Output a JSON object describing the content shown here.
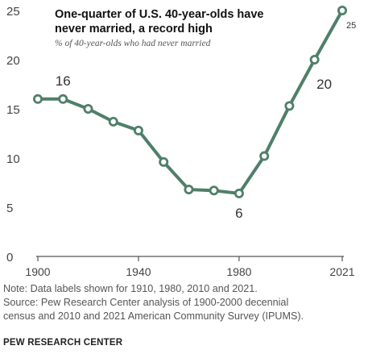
{
  "chart_data": {
    "type": "line",
    "title": "One-quarter of U.S. 40-year-olds have never married, a record high",
    "title_lines": [
      "One-quarter of U.S. 40-year-olds have",
      "never married, a record high"
    ],
    "subtitle": "% of 40-year-olds who had never married",
    "x": [
      1900,
      1910,
      1920,
      1930,
      1940,
      1950,
      1960,
      1970,
      1980,
      1990,
      2000,
      2010,
      2021
    ],
    "series": [
      {
        "values": [
          16.0,
          16.0,
          15.0,
          13.7,
          12.8,
          9.6,
          6.8,
          6.7,
          6.4,
          10.2,
          15.3,
          20.0,
          25.0
        ]
      }
    ],
    "x_ticks": [
      "1900",
      "1940",
      "1980",
      "2021"
    ],
    "x_tick_values": [
      1900,
      1940,
      1980,
      2021
    ],
    "y_ticks": [
      "0",
      "5",
      "10",
      "15",
      "20",
      "25"
    ],
    "y_tick_values": [
      0,
      5,
      10,
      15,
      20,
      25
    ],
    "xlim": [
      1900,
      2021
    ],
    "ylim": [
      0,
      25
    ],
    "data_labels": [
      {
        "x": 1910,
        "text": "16",
        "placement": "above"
      },
      {
        "x": 1980,
        "text": "6",
        "placement": "below"
      },
      {
        "x": 2010,
        "text": "20",
        "placement": "right-below"
      },
      {
        "x": 2021,
        "text": "25",
        "placement": "right"
      }
    ],
    "grid": false,
    "line_color": "#4f7f6a",
    "axis_color": "#555555"
  },
  "notes": {
    "line1": "Note: Data labels shown for 1910, 1980, 2010 and 2021.",
    "line2": "Source: Pew Research Center analysis of 1900-2000 decennial",
    "line3": "census and 2010 and 2021 American Community Survey (IPUMS)."
  },
  "source_label": "PEW RESEARCH CENTER"
}
